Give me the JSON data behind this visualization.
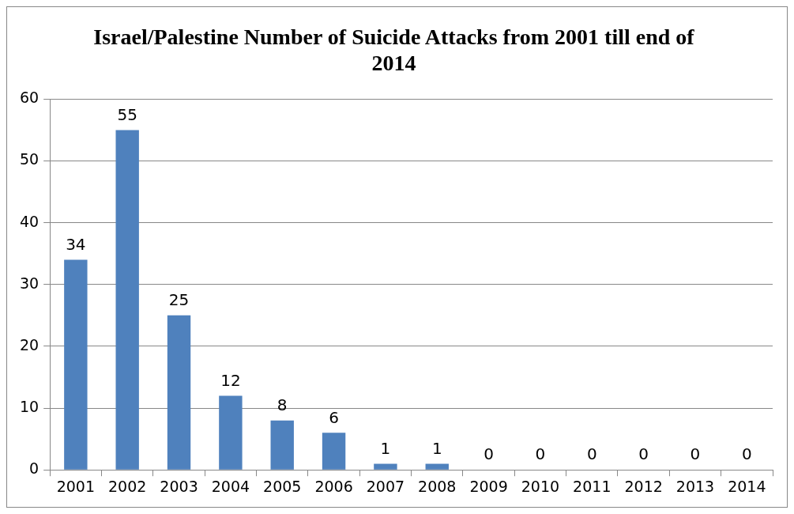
{
  "chart_data": {
    "type": "bar",
    "title": "Israel/Palestine Number of Suicide Attacks from 2001 till end of 2014",
    "categories": [
      "2001",
      "2002",
      "2003",
      "2004",
      "2005",
      "2006",
      "2007",
      "2008",
      "2009",
      "2010",
      "2011",
      "2012",
      "2013",
      "2014"
    ],
    "values": [
      34,
      55,
      25,
      12,
      8,
      6,
      1,
      1,
      0,
      0,
      0,
      0,
      0,
      0
    ],
    "color": "#4f81bd",
    "ylim": [
      0,
      60
    ],
    "yticks": [
      0,
      10,
      20,
      30,
      40,
      50,
      60
    ],
    "grid": "y",
    "data_labels": true,
    "legend": false
  }
}
